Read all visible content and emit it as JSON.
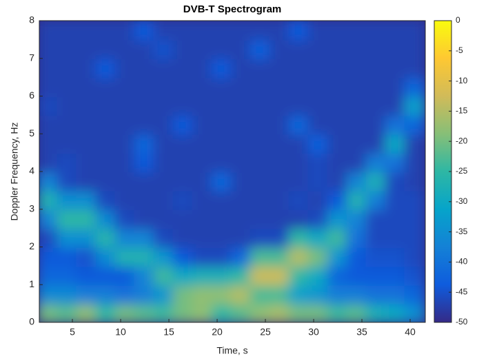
{
  "chart_data": {
    "type": "heatmap",
    "title": "DVB-T Spectrogram",
    "xlabel": "Time, s",
    "ylabel": "Doppler Frequency, Hz",
    "xlim": [
      1.57,
      41.57
    ],
    "xticks": [
      5,
      10,
      15,
      20,
      25,
      30,
      35,
      40
    ],
    "ylim": [
      0,
      8
    ],
    "yticks": [
      0,
      1,
      2,
      3,
      4,
      5,
      6,
      7,
      8
    ],
    "clim": [
      -50,
      0
    ],
    "cticks": [
      0,
      -5,
      -10,
      -15,
      -20,
      -25,
      -30,
      -35,
      -40,
      -45,
      -50
    ],
    "colormap": [
      "#352a87",
      "#0f5cdd",
      "#1481d6",
      "#06a4ca",
      "#2eb7a4",
      "#87bf77",
      "#d1bb59",
      "#fec832",
      "#f9fb0e"
    ],
    "x": [
      2.5,
      4.5,
      6.5,
      8.5,
      10.5,
      12.5,
      14.5,
      16.5,
      18.5,
      20.5,
      22.5,
      24.5,
      26.5,
      28.5,
      30.5,
      32.5,
      34.5,
      36.5,
      38.5,
      40.5
    ],
    "y": [
      0.25,
      0.75,
      1.25,
      1.75,
      2.25,
      2.75,
      3.25,
      3.75,
      4.25,
      4.75,
      5.25,
      5.75,
      6.25,
      6.75,
      7.25,
      7.75
    ],
    "z": [
      [
        -20,
        -22,
        -18,
        -25,
        -20,
        -22,
        -24,
        -20,
        -18,
        -25,
        -22,
        -18,
        -16,
        -20,
        -20,
        -24,
        -22,
        -28,
        -30,
        -35
      ],
      [
        -36,
        -36,
        -38,
        -38,
        -40,
        -38,
        -34,
        -20,
        -18,
        -18,
        -15,
        -23,
        -23,
        -32,
        -34,
        -38,
        -38,
        -40,
        -40,
        -42
      ],
      [
        -42,
        -42,
        -44,
        -44,
        -44,
        -37,
        -24,
        -30,
        -28,
        -28,
        -25,
        -13,
        -13,
        -25,
        -30,
        -42,
        -44,
        -44,
        -44,
        -45
      ],
      [
        -44,
        -44,
        -45,
        -36,
        -27,
        -27,
        -34,
        -44,
        -46,
        -46,
        -42,
        -23,
        -23,
        -15,
        -20,
        -34,
        -44,
        -45,
        -45,
        -46
      ],
      [
        -46,
        -35,
        -35,
        -26,
        -37,
        -37,
        -46,
        -47,
        -47,
        -47,
        -47,
        -46,
        -46,
        -25,
        -30,
        -24,
        -40,
        -46,
        -46,
        -46
      ],
      [
        -37,
        -25,
        -25,
        -36,
        -46,
        -47,
        -47,
        -47,
        -47,
        -47,
        -47,
        -47,
        -47,
        -47,
        -46,
        -34,
        -37,
        -46,
        -46,
        -46
      ],
      [
        -27,
        -35,
        -35,
        -46,
        -47,
        -47,
        -47,
        -46,
        -47,
        -47,
        -47,
        -47,
        -47,
        -46,
        -47,
        -44,
        -27,
        -38,
        -46,
        -46
      ],
      [
        -37,
        -46,
        -47,
        -47,
        -47,
        -47,
        -47,
        -47,
        -47,
        -42,
        -47,
        -47,
        -47,
        -47,
        -46,
        -47,
        -37,
        -28,
        -46,
        -47
      ],
      [
        -47,
        -46,
        -47,
        -47,
        -47,
        -44,
        -47,
        -47,
        -47,
        -47,
        -47,
        -47,
        -47,
        -47,
        -46,
        -47,
        -47,
        -38,
        -40,
        -47
      ],
      [
        -47,
        -47,
        -47,
        -47,
        -47,
        -42,
        -47,
        -47,
        -47,
        -47,
        -47,
        -47,
        -47,
        -47,
        -43,
        -47,
        -47,
        -47,
        -30,
        -47
      ],
      [
        -47,
        -47,
        -47,
        -47,
        -47,
        -47,
        -47,
        -44,
        -47,
        -47,
        -47,
        -47,
        -47,
        -42,
        -47,
        -47,
        -47,
        -47,
        -40,
        -42
      ],
      [
        -46,
        -47,
        -47,
        -47,
        -47,
        -47,
        -47,
        -47,
        -47,
        -47,
        -47,
        -47,
        -47,
        -47,
        -47,
        -47,
        -47,
        -47,
        -47,
        -32
      ],
      [
        -47,
        -47,
        -47,
        -47,
        -47,
        -47,
        -47,
        -47,
        -47,
        -47,
        -47,
        -47,
        -47,
        -47,
        -47,
        -47,
        -47,
        -47,
        -47,
        -42
      ],
      [
        -47,
        -47,
        -47,
        -44,
        -47,
        -47,
        -47,
        -47,
        -47,
        -44,
        -47,
        -47,
        -47,
        -47,
        -47,
        -47,
        -47,
        -47,
        -47,
        -47
      ],
      [
        -47,
        -47,
        -47,
        -47,
        -47,
        -47,
        -45,
        -47,
        -47,
        -47,
        -47,
        -43,
        -47,
        -47,
        -47,
        -47,
        -47,
        -47,
        -47,
        -47
      ],
      [
        -47,
        -47,
        -47,
        -47,
        -47,
        -44,
        -47,
        -47,
        -47,
        -47,
        -47,
        -47,
        -47,
        -44,
        -47,
        -47,
        -47,
        -47,
        -47,
        -47
      ]
    ]
  }
}
